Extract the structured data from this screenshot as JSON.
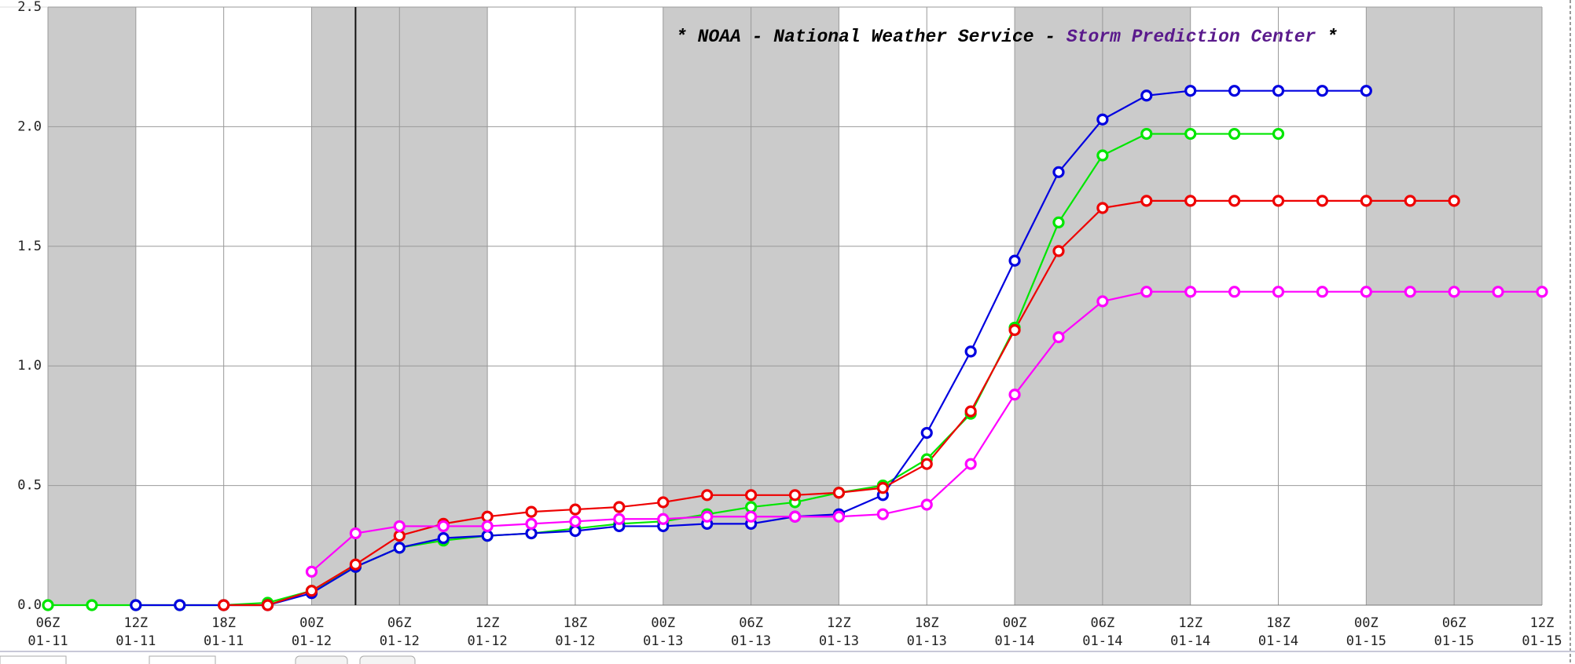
{
  "chart_data": {
    "type": "line",
    "title": [
      "* NOAA - National Weather Service - ",
      "Storm Prediction Center",
      " *"
    ],
    "title_colors": [
      "#000000",
      "#5a1a8c",
      "#000000"
    ],
    "categories": [
      "06Z 01-11",
      null,
      "12Z 01-11",
      null,
      "18Z 01-11",
      null,
      "00Z 01-12",
      null,
      "06Z 01-12",
      null,
      "12Z 01-12",
      null,
      "18Z 01-12",
      null,
      "00Z 01-13",
      null,
      "06Z 01-13",
      null,
      "12Z 01-13",
      null,
      "18Z 01-13",
      null,
      "00Z 01-14",
      null,
      "06Z 01-14",
      null,
      "12Z 01-14",
      null,
      "18Z 01-14",
      null,
      "00Z 01-15",
      null,
      "06Z 01-15",
      null,
      "12Z 01-15"
    ],
    "series": [
      {
        "name": "green",
        "color": "#00e600",
        "values": [
          0,
          0,
          0,
          0,
          0,
          0.01,
          0.06,
          0.16,
          0.24,
          0.27,
          0.29,
          0.3,
          0.32,
          0.34,
          0.35,
          0.38,
          0.41,
          0.43,
          0.47,
          0.5,
          0.61,
          0.8,
          1.16,
          1.6,
          1.88,
          1.97,
          1.97,
          1.97,
          1.97,
          null,
          null,
          null,
          null,
          null,
          null
        ]
      },
      {
        "name": "blue",
        "color": "#0000e0",
        "values": [
          null,
          null,
          0,
          0,
          0,
          0,
          0.05,
          0.16,
          0.24,
          0.28,
          0.29,
          0.3,
          0.31,
          0.33,
          0.33,
          0.34,
          0.34,
          0.37,
          0.38,
          0.46,
          0.72,
          1.06,
          1.44,
          1.81,
          2.03,
          2.13,
          2.15,
          2.15,
          2.15,
          2.15,
          2.15,
          null,
          null,
          null,
          null
        ]
      },
      {
        "name": "red",
        "color": "#ee0000",
        "values": [
          null,
          null,
          null,
          null,
          0,
          0,
          0.06,
          0.17,
          0.29,
          0.34,
          0.37,
          0.39,
          0.4,
          0.41,
          0.43,
          0.46,
          0.46,
          0.46,
          0.47,
          0.49,
          0.59,
          0.81,
          1.15,
          1.48,
          1.66,
          1.69,
          1.69,
          1.69,
          1.69,
          1.69,
          1.69,
          1.69,
          1.69,
          null,
          null
        ]
      },
      {
        "name": "magenta",
        "color": "#ff00ff",
        "values": [
          null,
          null,
          null,
          null,
          null,
          null,
          0.14,
          0.3,
          0.33,
          0.33,
          0.33,
          0.34,
          0.35,
          0.36,
          0.36,
          0.37,
          0.37,
          0.37,
          0.37,
          0.38,
          0.42,
          0.59,
          0.88,
          1.12,
          1.27,
          1.31,
          1.31,
          1.31,
          1.31,
          1.31,
          1.31,
          1.31,
          1.31,
          1.31,
          1.31
        ]
      }
    ],
    "ylim": [
      0,
      2.5
    ],
    "yticks": [
      {
        "value": 0,
        "label": "0.0"
      },
      {
        "value": 0.5,
        "label": "0.5"
      },
      {
        "value": 1,
        "label": "1.0"
      },
      {
        "value": 1.5,
        "label": "1.5"
      },
      {
        "value": 2,
        "label": "2.0"
      },
      {
        "value": 2.5,
        "label": "2.5"
      }
    ],
    "grid": true
  }
}
